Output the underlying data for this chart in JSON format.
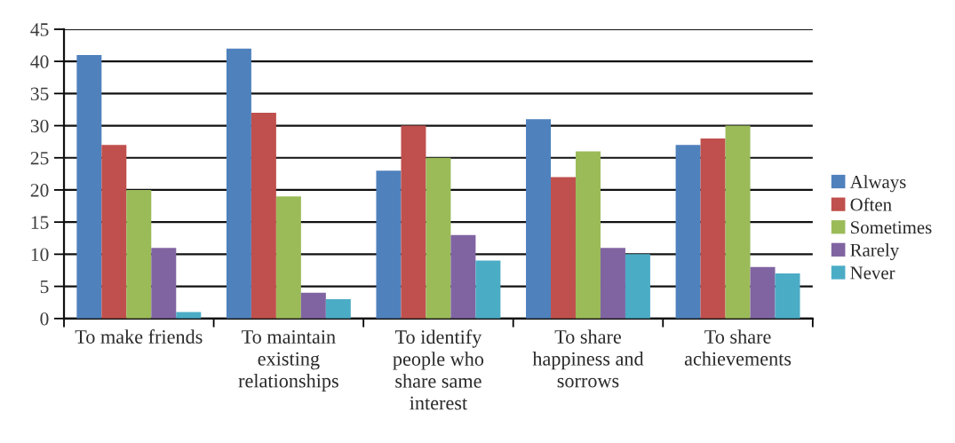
{
  "chart_data": {
    "type": "bar",
    "categories": [
      "To make friends",
      "To maintain existing relationships",
      "To identify people who share same interest",
      "To share happiness and sorrows",
      "To share achievements"
    ],
    "series": [
      {
        "name": "Always",
        "color": "#4f81bd",
        "values": [
          41,
          42,
          23,
          31,
          27
        ]
      },
      {
        "name": "Often",
        "color": "#c0504d",
        "values": [
          27,
          32,
          30,
          22,
          28
        ]
      },
      {
        "name": "Sometimes",
        "color": "#9bbb59",
        "values": [
          20,
          19,
          25,
          26,
          30
        ]
      },
      {
        "name": "Rarely",
        "color": "#8064a2",
        "values": [
          11,
          4,
          13,
          11,
          8
        ]
      },
      {
        "name": "Never",
        "color": "#4bacc6",
        "values": [
          1,
          3,
          9,
          10,
          7
        ]
      }
    ],
    "ylim": [
      0,
      45
    ],
    "yticks": [
      0,
      5,
      10,
      15,
      20,
      25,
      30,
      35,
      40,
      45
    ],
    "grid": "y",
    "legend": "right"
  }
}
